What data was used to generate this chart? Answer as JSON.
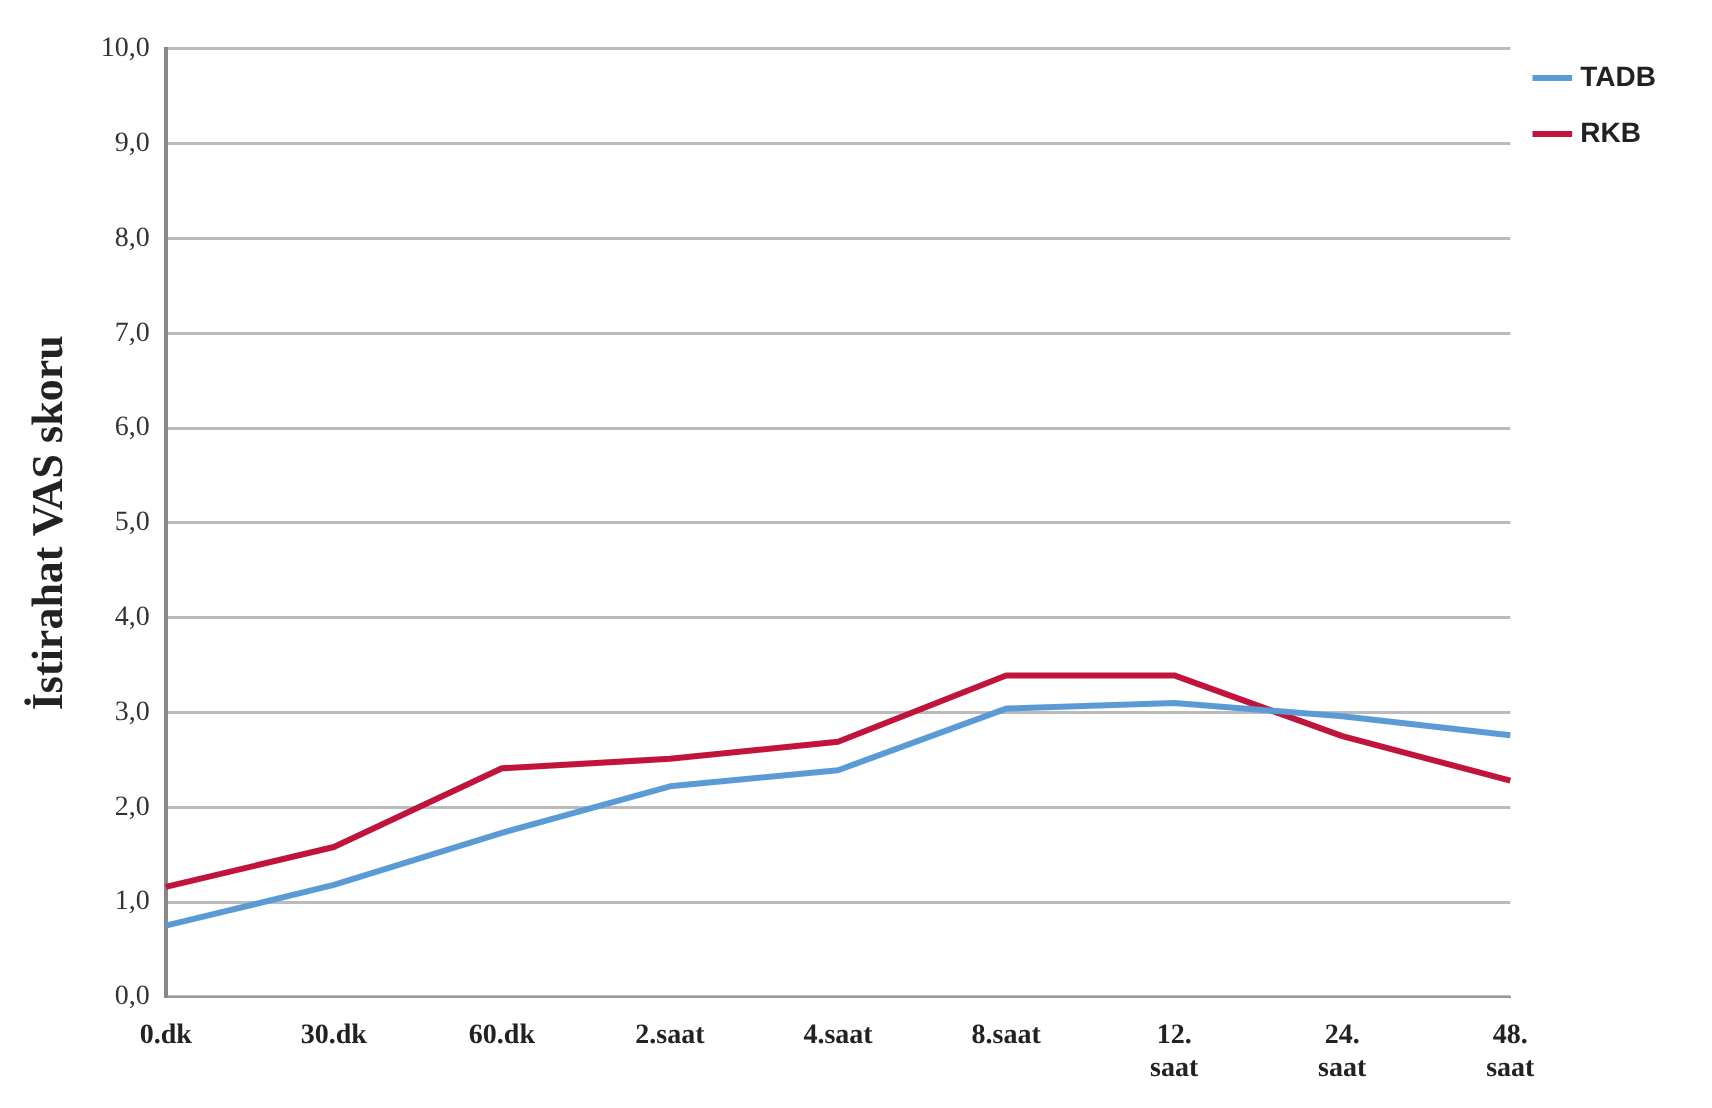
{
  "chart_data": {
    "type": "line",
    "ylabel": "İstirahat VAS skoru",
    "categories": [
      "0.dk",
      "30.dk",
      "60.dk",
      "2.saat",
      "4.saat",
      "8.saat",
      "12. saat",
      "24. saat",
      "48. saat"
    ],
    "series": [
      {
        "name": "TADB",
        "color": "#5b9bd5",
        "values": [
          0.75,
          1.18,
          1.73,
          2.22,
          2.39,
          3.04,
          3.1,
          2.96,
          2.76
        ]
      },
      {
        "name": "RKB",
        "color": "#c0143c",
        "values": [
          1.16,
          1.58,
          2.41,
          2.51,
          2.69,
          3.39,
          3.39,
          2.75,
          2.28
        ]
      }
    ],
    "ylim": [
      0,
      10
    ],
    "yticks": [
      {
        "value": 0,
        "label": "0,0"
      },
      {
        "value": 1,
        "label": "1,0"
      },
      {
        "value": 2,
        "label": "2,0"
      },
      {
        "value": 3,
        "label": "3,0"
      },
      {
        "value": 4,
        "label": "4,0"
      },
      {
        "value": 5,
        "label": "5,0"
      },
      {
        "value": 6,
        "label": "6,0"
      },
      {
        "value": 7,
        "label": "7,0"
      },
      {
        "value": 8,
        "label": "8,0"
      },
      {
        "value": 9,
        "label": "9,0"
      },
      {
        "value": 10,
        "label": "10,0"
      }
    ],
    "grid": "y",
    "legend": "top right",
    "marker": "none",
    "line_style": "solid"
  }
}
